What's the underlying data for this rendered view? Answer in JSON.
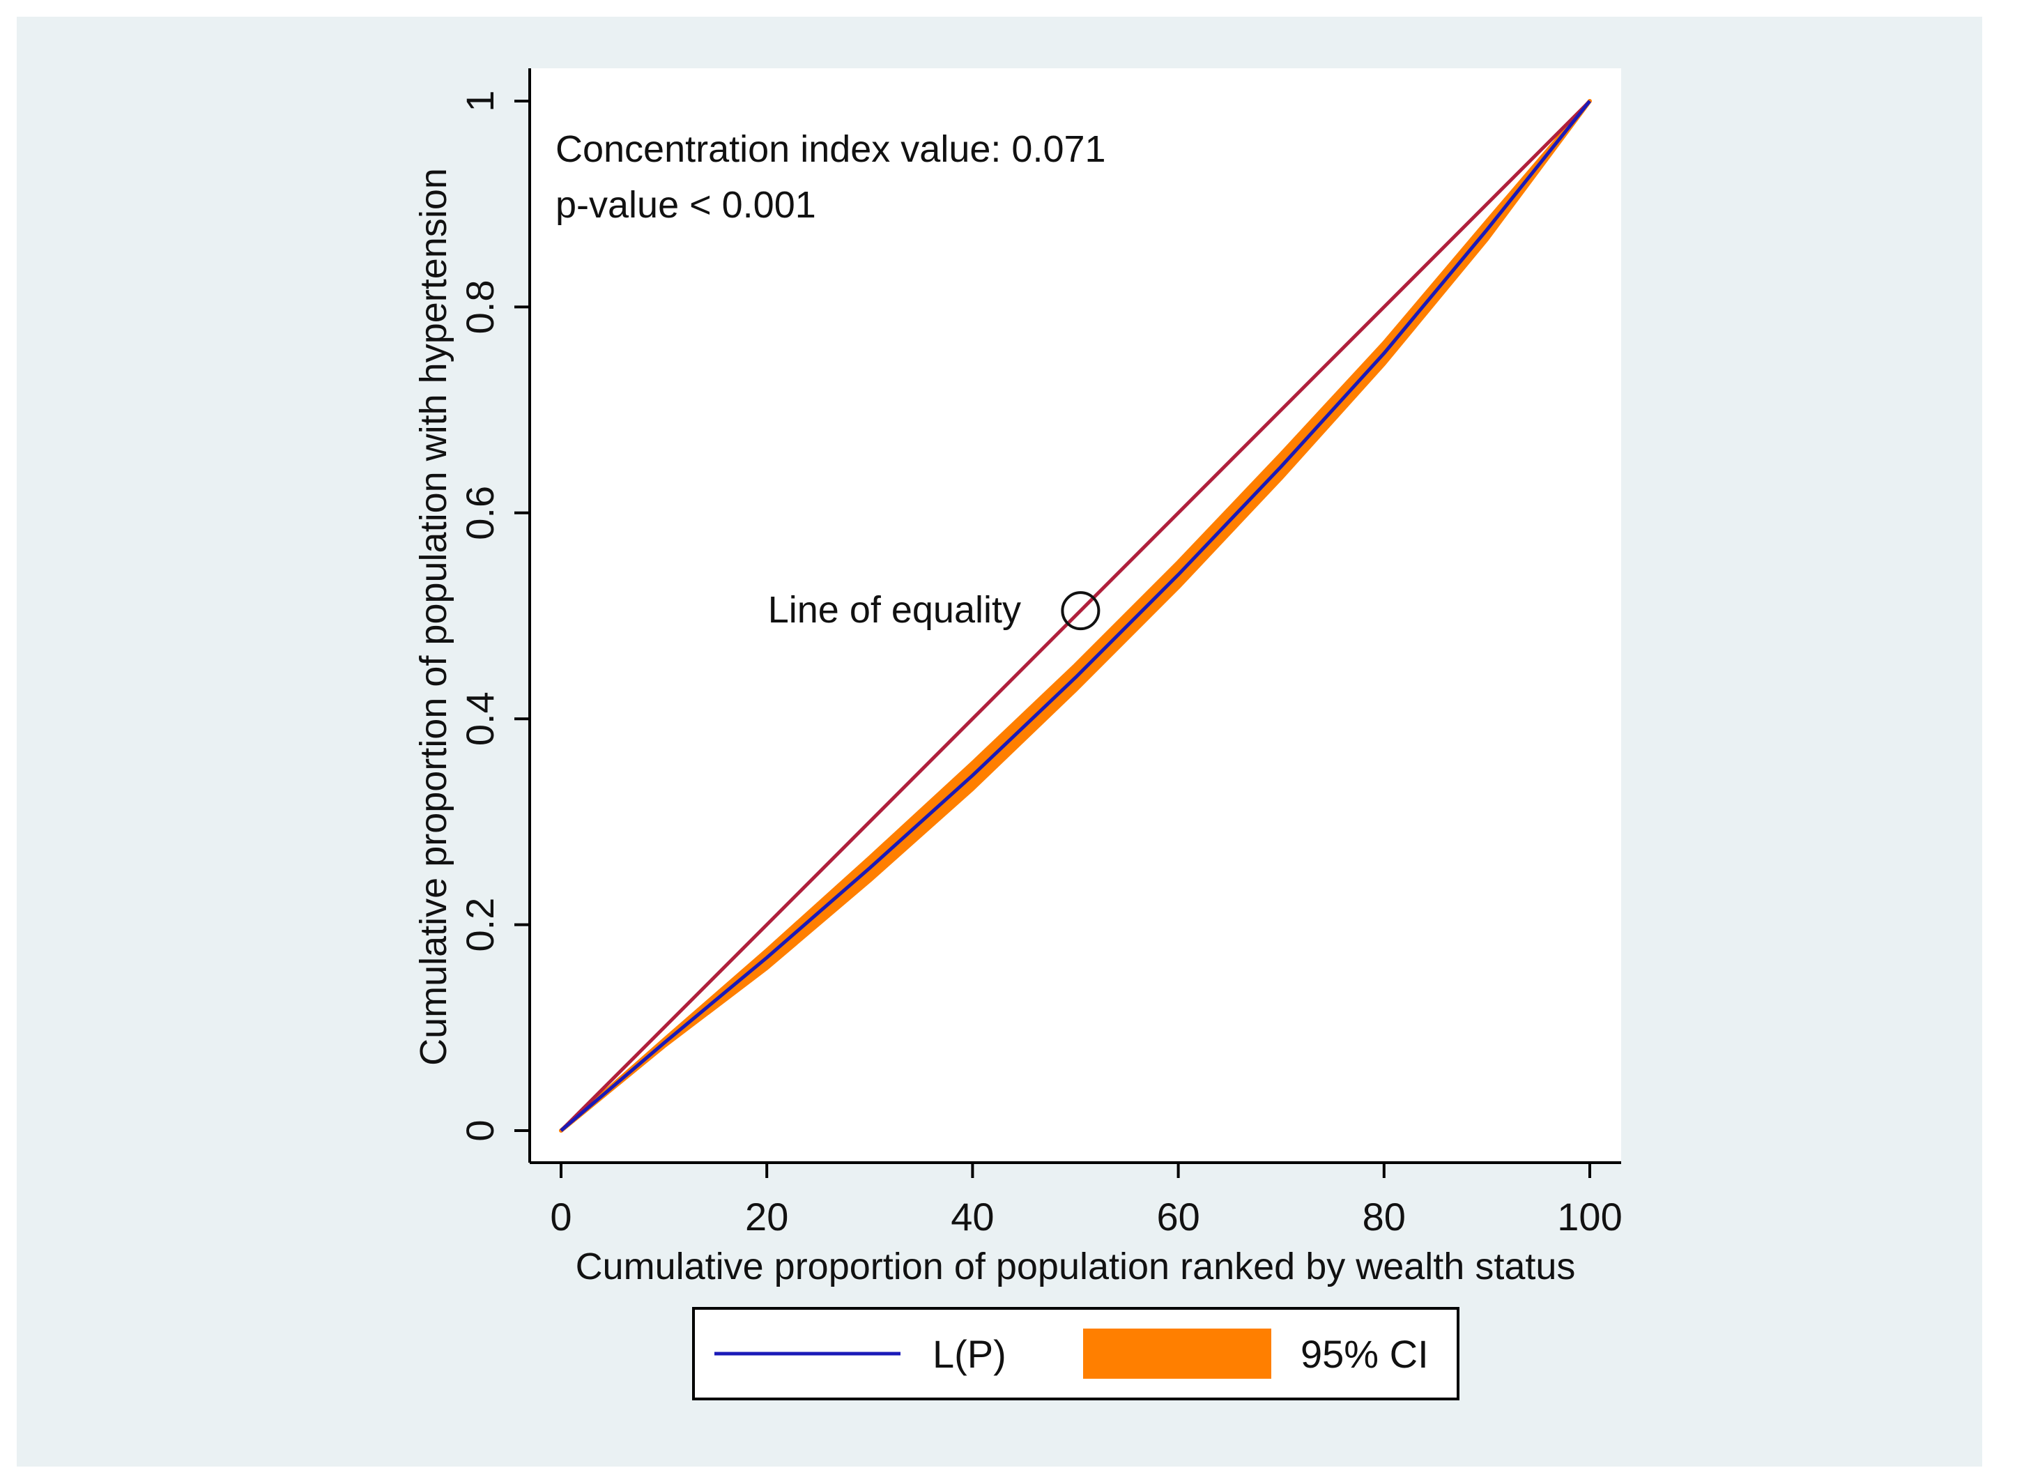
{
  "chart_data": {
    "type": "line",
    "title": "",
    "xlabel": "Cumulative proportion of population ranked by wealth status",
    "ylabel": "Cumulative proportion of population with hypertension",
    "xlim": [
      0,
      100
    ],
    "ylim": [
      0,
      1
    ],
    "xticks": [
      "0",
      "20",
      "40",
      "60",
      "80",
      "100"
    ],
    "yticks": [
      "0",
      "0.2",
      "0.4",
      "0.6",
      "0.8",
      "1"
    ],
    "xtick_values": [
      0,
      20,
      40,
      60,
      80,
      100
    ],
    "ytick_values": [
      0,
      0.2,
      0.4,
      0.6,
      0.8,
      1
    ],
    "grid": true,
    "annotations": {
      "concentration_index": "Concentration index value: 0.071",
      "p_value": "p-value < 0.001",
      "equality_label": "Line of equality",
      "equality_marker_at": [
        50.5,
        0.505
      ]
    },
    "series": [
      {
        "name": "Line of equality",
        "color": "#b0203c",
        "x": [
          0,
          100
        ],
        "y": [
          0,
          1
        ]
      },
      {
        "name": "L(P)",
        "color": "#1a1ab8",
        "x": [
          0,
          10,
          20,
          30,
          40,
          50,
          60,
          70,
          80,
          90,
          100
        ],
        "y": [
          0,
          0.085,
          0.168,
          0.255,
          0.345,
          0.44,
          0.54,
          0.645,
          0.755,
          0.875,
          1
        ]
      },
      {
        "name": "95% CI",
        "color": "#ff7f00",
        "type": "band",
        "x": [
          0,
          10,
          20,
          30,
          40,
          50,
          60,
          70,
          80,
          90,
          100
        ],
        "lower": [
          0,
          0.082,
          0.158,
          0.243,
          0.332,
          0.428,
          0.528,
          0.634,
          0.745,
          0.866,
          1
        ],
        "upper": [
          0,
          0.088,
          0.175,
          0.265,
          0.357,
          0.452,
          0.552,
          0.657,
          0.765,
          0.883,
          1
        ]
      }
    ],
    "legend": {
      "position": "bottom",
      "entries": [
        {
          "label": "L(P)",
          "color": "#1a1ab8",
          "kind": "line"
        },
        {
          "label": "95% CI",
          "color": "#ff7f00",
          "kind": "area"
        }
      ]
    }
  }
}
